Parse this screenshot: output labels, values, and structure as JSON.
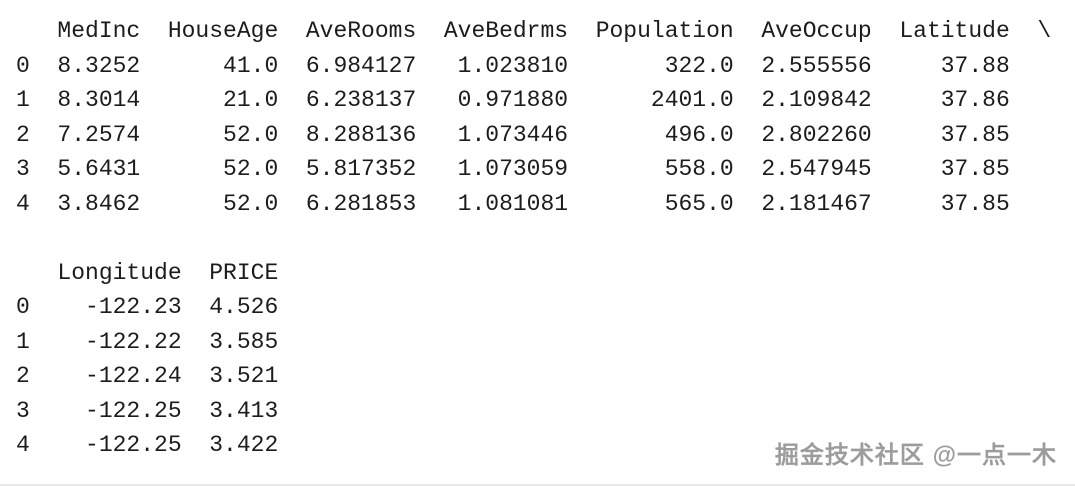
{
  "page": {
    "background_color": "#ffffff",
    "text_color": "#1c1c1c",
    "bottom_line_color": "#e9e9e9"
  },
  "console": {
    "lines": [
      "   MedInc  HouseAge  AveRooms  AveBedrms  Population  AveOccup  Latitude  \\",
      "0  8.3252      41.0  6.984127   1.023810       322.0  2.555556     37.88",
      "1  8.3014      21.0  6.238137   0.971880      2401.0  2.109842     37.86",
      "2  7.2574      52.0  8.288136   1.073446       496.0  2.802260     37.85",
      "3  5.6431      52.0  5.817352   1.073059       558.0  2.547945     37.85",
      "4  3.8462      52.0  6.281853   1.081081       565.0  2.181467     37.85",
      "",
      "   Longitude  PRICE",
      "0    -122.23  4.526",
      "1    -122.22  3.585",
      "2    -122.24  3.521",
      "3    -122.25  3.413",
      "4    -122.25  3.422"
    ]
  },
  "table_data": {
    "type": "table",
    "index": [
      "0",
      "1",
      "2",
      "3",
      "4"
    ],
    "columns": [
      "MedInc",
      "HouseAge",
      "AveRooms",
      "AveBedrms",
      "Population",
      "AveOccup",
      "Latitude",
      "Longitude",
      "PRICE"
    ],
    "rows": [
      [
        "8.3252",
        "41.0",
        "6.984127",
        "1.023810",
        "322.0",
        "2.555556",
        "37.88",
        "-122.23",
        "4.526"
      ],
      [
        "8.3014",
        "21.0",
        "6.238137",
        "0.971880",
        "2401.0",
        "2.109842",
        "37.86",
        "-122.22",
        "3.585"
      ],
      [
        "7.2574",
        "52.0",
        "8.288136",
        "1.073446",
        "496.0",
        "2.802260",
        "37.85",
        "-122.24",
        "3.521"
      ],
      [
        "5.6431",
        "52.0",
        "5.817352",
        "1.073059",
        "558.0",
        "2.547945",
        "37.85",
        "-122.25",
        "3.413"
      ],
      [
        "3.8462",
        "52.0",
        "6.281853",
        "1.081081",
        "565.0",
        "2.181467",
        "37.85",
        "-122.25",
        "3.422"
      ]
    ],
    "line_continuation_char": "\\"
  },
  "watermark": {
    "text": "掘金技术社区 @一点一木",
    "color": "#9c9c9c"
  }
}
